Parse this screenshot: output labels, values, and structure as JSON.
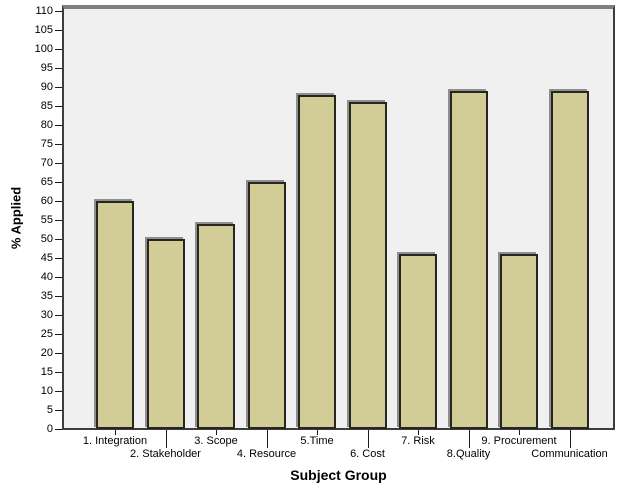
{
  "chart_data": {
    "type": "bar",
    "title": "",
    "xlabel": "Subject Group",
    "ylabel": "% Applied",
    "categories": [
      "1. Integration",
      "2. Stakeholder",
      "3. Scope",
      "4. Resource",
      "5.Time",
      "6. Cost",
      "7. Risk",
      "8.Quality",
      "9. Procurement",
      "Communication"
    ],
    "values": [
      60,
      50,
      54,
      65,
      88,
      86,
      46,
      89,
      46,
      89
    ],
    "ylim": [
      0,
      110
    ],
    "ytick_step": 5,
    "grid": false,
    "legend": null,
    "label_rows": [
      1,
      2,
      1,
      2,
      1,
      2,
      1,
      2,
      1,
      2
    ],
    "colors": {
      "bar_fill": "#d2cd96",
      "bar_border": "#26261c",
      "bar_shadow": "#8f8f8f",
      "plot_background": "#f0f0f0",
      "frame_top": "#7f7f7f",
      "frame_sides": "#3d3d3d",
      "page_background": "#ffffff",
      "text": "#000000"
    }
  }
}
